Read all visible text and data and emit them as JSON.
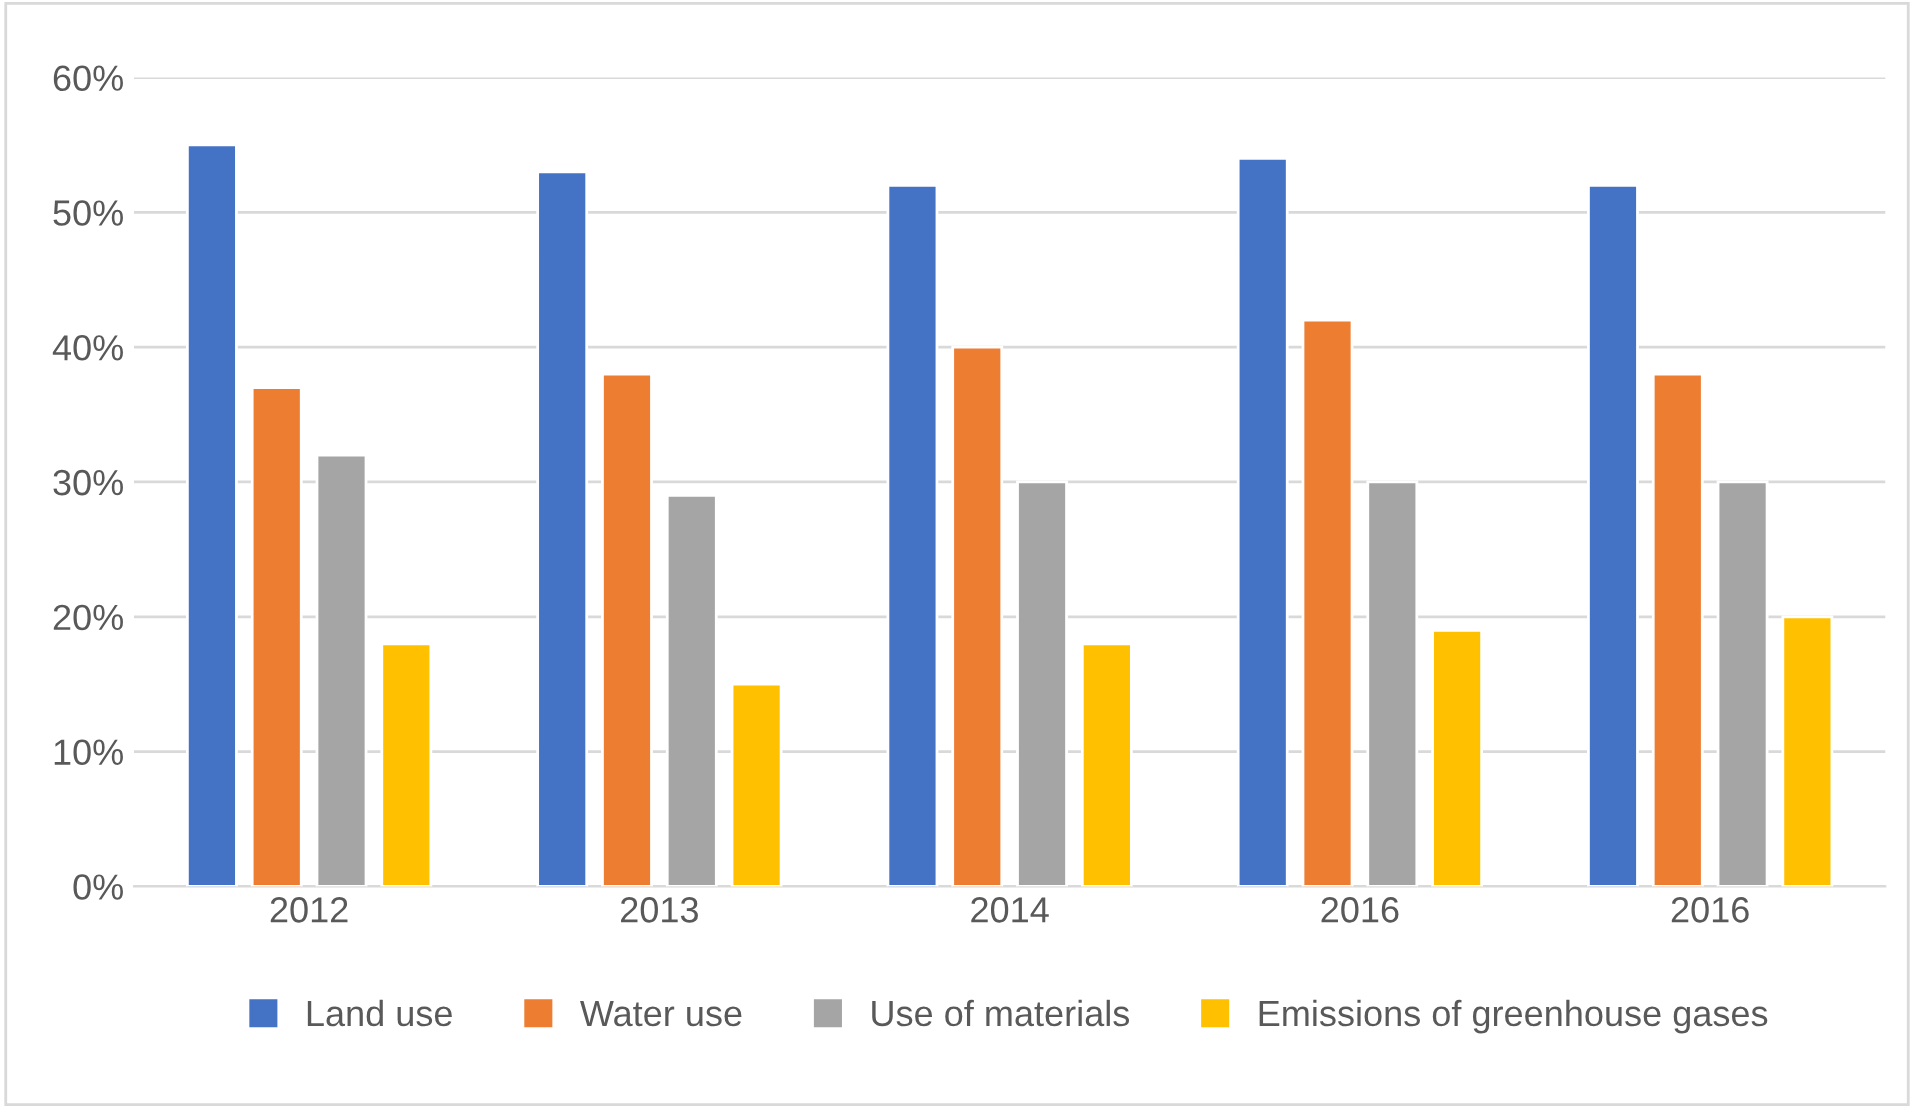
{
  "chart_data": {
    "type": "bar",
    "categories": [
      "2012",
      "2013",
      "2014",
      "2016",
      "2016"
    ],
    "series": [
      {
        "name": "Land use",
        "color": "#4472c4",
        "values": [
          55,
          53,
          52,
          54,
          52
        ]
      },
      {
        "name": "Water use",
        "color": "#ed7d31",
        "values": [
          37,
          38,
          40,
          42,
          38
        ]
      },
      {
        "name": "Use of materials",
        "color": "#a5a5a5",
        "values": [
          32,
          29,
          30,
          30,
          30
        ]
      },
      {
        "name": "Emissions of greenhouse gases",
        "color": "#ffc000",
        "values": [
          18,
          15,
          18,
          19,
          20
        ]
      }
    ],
    "ylim": [
      0,
      60
    ],
    "yticks": [
      {
        "value": 0,
        "label": "0%"
      },
      {
        "value": 10,
        "label": "10%"
      },
      {
        "value": 20,
        "label": "20%"
      },
      {
        "value": 30,
        "label": "30%"
      },
      {
        "value": 40,
        "label": "40%"
      },
      {
        "value": 50,
        "label": "50%"
      },
      {
        "value": 60,
        "label": "60%"
      }
    ],
    "grid": "y",
    "legend": "bottom"
  }
}
